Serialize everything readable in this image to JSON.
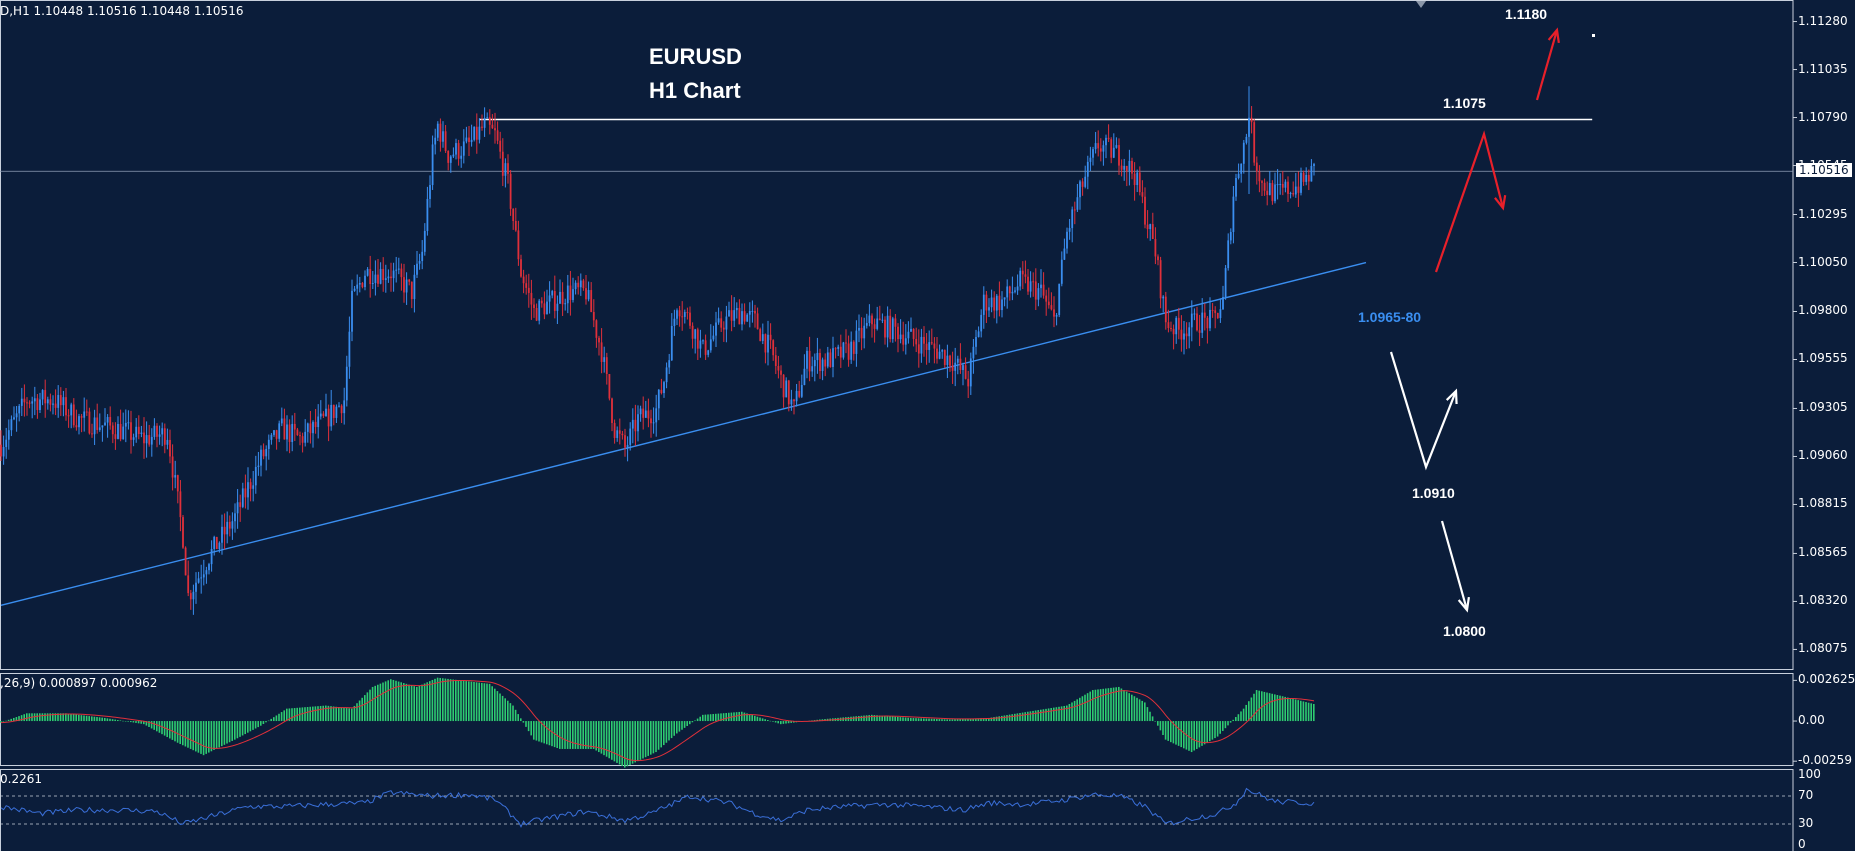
{
  "header": {
    "symbol_line": "D,H1  1.10448 1.10516 1.10448 1.10516",
    "macd_line": ",26,9) 0.000897 0.000962",
    "rsi_line": "0.2261"
  },
  "titles": {
    "line1": "EURUSD",
    "line2": "H1 Chart"
  },
  "levels": {
    "target_up": "1.1180",
    "resistance": "1.1075",
    "support_zone": "1.0965-80",
    "mid_target": "1.0910",
    "low_target": "1.0800"
  },
  "current_price_label": "1.10516",
  "colors": {
    "background": "#0b1d3a",
    "bull_candle": "#3a8ef0",
    "bear_candle": "#e0303a",
    "trendline": "#3a8ef0",
    "resistance_line": "#ffffff",
    "histogram": "#2ecc71",
    "signal_line": "#e0303a",
    "rsi_line": "#3a6fd8",
    "arrow_red": "#e8202a",
    "arrow_white": "#ffffff"
  },
  "chart_data": {
    "type": "candlestick",
    "timeframe": "H1",
    "price_axis": {
      "ticks": [
        "1.11280",
        "1.11035",
        "1.10790",
        "1.10545",
        "1.10295",
        "1.10050",
        "1.09800",
        "1.09555",
        "1.09305",
        "1.09060",
        "1.08815",
        "1.08565",
        "1.08320",
        "1.08075"
      ],
      "ylim": [
        1.0797,
        1.1139
      ]
    },
    "price_path": [
      [
        0,
        1.0912
      ],
      [
        10,
        1.0935
      ],
      [
        20,
        1.0935
      ],
      [
        30,
        1.0925
      ],
      [
        45,
        1.092
      ],
      [
        55,
        1.0915
      ],
      [
        64,
        1.0918
      ],
      [
        70,
        1.0865
      ],
      [
        72,
        1.0835
      ],
      [
        80,
        1.0855
      ],
      [
        90,
        1.0875
      ],
      [
        100,
        1.0905
      ],
      [
        108,
        1.092
      ],
      [
        115,
        1.0915
      ],
      [
        125,
        1.0925
      ],
      [
        132,
        1.0935
      ],
      [
        135,
        1.0985
      ],
      [
        140,
        1.1
      ],
      [
        150,
        1.1
      ],
      [
        158,
        1.099
      ],
      [
        162,
        1.101
      ],
      [
        166,
        1.106
      ],
      [
        168,
        1.1075
      ],
      [
        172,
        1.106
      ],
      [
        180,
        1.1065
      ],
      [
        186,
        1.1075
      ],
      [
        190,
        1.107
      ],
      [
        195,
        1.1045
      ],
      [
        200,
        1.1
      ],
      [
        205,
        1.098
      ],
      [
        212,
        1.0985
      ],
      [
        218,
        1.099
      ],
      [
        225,
        1.099
      ],
      [
        231,
        1.096
      ],
      [
        236,
        1.092
      ],
      [
        240,
        1.091
      ],
      [
        245,
        1.0925
      ],
      [
        252,
        1.093
      ],
      [
        255,
        1.0945
      ],
      [
        260,
        1.0985
      ],
      [
        265,
        1.0975
      ],
      [
        270,
        1.096
      ],
      [
        278,
        1.0975
      ],
      [
        285,
        1.098
      ],
      [
        290,
        1.0975
      ],
      [
        296,
        1.096
      ],
      [
        300,
        1.0945
      ],
      [
        305,
        1.093
      ],
      [
        310,
        1.0955
      ],
      [
        318,
        1.0955
      ],
      [
        326,
        1.096
      ],
      [
        335,
        1.0975
      ],
      [
        345,
        1.097
      ],
      [
        352,
        1.0965
      ],
      [
        360,
        1.096
      ],
      [
        366,
        1.0955
      ],
      [
        372,
        1.0945
      ],
      [
        378,
        1.0985
      ],
      [
        385,
        1.0985
      ],
      [
        392,
        1.0995
      ],
      [
        400,
        1.099
      ],
      [
        405,
        1.0975
      ],
      [
        410,
        1.102
      ],
      [
        416,
        1.1045
      ],
      [
        422,
        1.1065
      ],
      [
        430,
        1.106
      ],
      [
        436,
        1.105
      ],
      [
        440,
        1.103
      ],
      [
        444,
        1.101
      ],
      [
        448,
        1.0975
      ],
      [
        453,
        1.097
      ],
      [
        460,
        1.0975
      ],
      [
        466,
        1.0975
      ],
      [
        470,
        1.0985
      ],
      [
        474,
        1.104
      ],
      [
        477,
        1.106
      ],
      [
        479,
        1.107
      ],
      [
        480,
        1.1083
      ],
      [
        482,
        1.106
      ],
      [
        485,
        1.1045
      ],
      [
        490,
        1.104
      ],
      [
        500,
        1.1045
      ],
      [
        505,
        1.1052
      ]
    ],
    "trendline": {
      "from": [
        0,
        1.083
      ],
      "to": [
        525,
        1.1005
      ]
    },
    "resistance_line": {
      "from": [
        184,
        1.1078
      ],
      "to": [
        612,
        1.1078
      ],
      "value": 1.1075
    },
    "current_price": 1.10516,
    "annotations": [
      {
        "text": "1.1180",
        "type": "target-up"
      },
      {
        "text": "1.1075",
        "type": "resistance"
      },
      {
        "text": "1.0965-80",
        "type": "support-zone"
      },
      {
        "text": "1.0910",
        "type": "target"
      },
      {
        "text": "1.0800",
        "type": "target"
      }
    ],
    "macd": {
      "ticks": [
        "0.002625",
        "0.00",
        "-0.00259"
      ],
      "ylim": [
        -0.0029,
        0.0031
      ],
      "profile": [
        [
          0,
          -0.0001
        ],
        [
          10,
          0.0005
        ],
        [
          25,
          0.0005
        ],
        [
          40,
          0.0002
        ],
        [
          55,
          -0.0002
        ],
        [
          68,
          -0.0014
        ],
        [
          78,
          -0.0022
        ],
        [
          90,
          -0.0012
        ],
        [
          100,
          -0.0003
        ],
        [
          110,
          0.0008
        ],
        [
          125,
          0.001
        ],
        [
          135,
          0.0008
        ],
        [
          143,
          0.0022
        ],
        [
          150,
          0.0027
        ],
        [
          160,
          0.0022
        ],
        [
          168,
          0.0028
        ],
        [
          178,
          0.0026
        ],
        [
          188,
          0.0024
        ],
        [
          197,
          0.001
        ],
        [
          205,
          -0.0012
        ],
        [
          215,
          -0.0018
        ],
        [
          228,
          -0.0018
        ],
        [
          240,
          -0.003
        ],
        [
          252,
          -0.002
        ],
        [
          260,
          -0.0008
        ],
        [
          270,
          0.0004
        ],
        [
          285,
          0.0006
        ],
        [
          300,
          -0.0002
        ],
        [
          315,
          0.0001
        ],
        [
          335,
          0.0004
        ],
        [
          350,
          0.0002
        ],
        [
          365,
          0.0001
        ],
        [
          380,
          0.0002
        ],
        [
          395,
          0.0006
        ],
        [
          410,
          0.001
        ],
        [
          420,
          0.002
        ],
        [
          430,
          0.0022
        ],
        [
          440,
          0.0012
        ],
        [
          448,
          -0.0012
        ],
        [
          458,
          -0.002
        ],
        [
          468,
          -0.001
        ],
        [
          478,
          0.0008
        ],
        [
          483,
          0.002
        ],
        [
          493,
          0.0016
        ],
        [
          505,
          0.0011
        ]
      ]
    },
    "rsi": {
      "ticks": [
        "100",
        "70",
        "30",
        "0"
      ],
      "levels": [
        70,
        30
      ],
      "ylim": [
        0,
        100
      ],
      "profile": [
        [
          0,
          55
        ],
        [
          15,
          45
        ],
        [
          30,
          50
        ],
        [
          45,
          50
        ],
        [
          60,
          48
        ],
        [
          70,
          30
        ],
        [
          80,
          40
        ],
        [
          95,
          55
        ],
        [
          110,
          55
        ],
        [
          125,
          58
        ],
        [
          140,
          60
        ],
        [
          150,
          75
        ],
        [
          165,
          70
        ],
        [
          180,
          72
        ],
        [
          190,
          65
        ],
        [
          200,
          30
        ],
        [
          210,
          38
        ],
        [
          225,
          48
        ],
        [
          240,
          35
        ],
        [
          250,
          45
        ],
        [
          265,
          70
        ],
        [
          280,
          60
        ],
        [
          290,
          45
        ],
        [
          300,
          35
        ],
        [
          310,
          50
        ],
        [
          325,
          55
        ],
        [
          340,
          58
        ],
        [
          355,
          55
        ],
        [
          370,
          50
        ],
        [
          380,
          60
        ],
        [
          395,
          58
        ],
        [
          410,
          65
        ],
        [
          420,
          72
        ],
        [
          430,
          70
        ],
        [
          440,
          55
        ],
        [
          448,
          30
        ],
        [
          458,
          38
        ],
        [
          468,
          45
        ],
        [
          475,
          60
        ],
        [
          479,
          80
        ],
        [
          482,
          75
        ],
        [
          490,
          62
        ],
        [
          505,
          60
        ]
      ]
    }
  }
}
